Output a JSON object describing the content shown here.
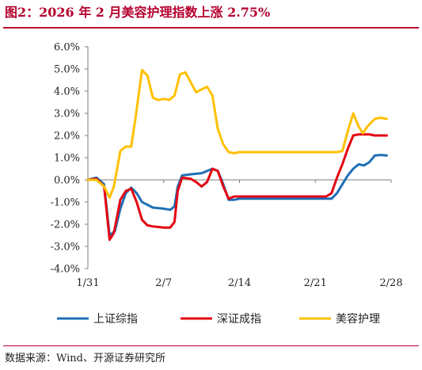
{
  "title": "图2：2026 年 2 月美容护理指数上涨 2.75%",
  "source": "数据来源：Wind、开源证券研究所",
  "colors": {
    "accent": "#b5002e",
    "axis": "#7f7f7f"
  },
  "chart_data": {
    "type": "line",
    "title": "",
    "xlabel": "",
    "ylabel": "",
    "ylim": [
      -4.0,
      6.0
    ],
    "y_ticks": [
      "6.0%",
      "5.0%",
      "4.0%",
      "3.0%",
      "2.0%",
      "1.0%",
      "0.0%",
      "-1.0%",
      "-2.0%",
      "-3.0%",
      "-4.0%"
    ],
    "y_tick_values": [
      6,
      5,
      4,
      3,
      2,
      1,
      0,
      -1,
      -2,
      -3,
      -4
    ],
    "x_ticks": [
      "1/31",
      "2/7",
      "2/14",
      "2/21",
      "2/28"
    ],
    "x_tick_index": [
      0,
      7,
      14,
      21,
      28
    ],
    "x_domain": [
      0,
      28
    ],
    "legend_position": "bottom",
    "grid": false,
    "series": [
      {
        "name": "上证综指",
        "color": "#1f6fb5",
        "points": [
          [
            0,
            0.0
          ],
          [
            0.8,
            0.1
          ],
          [
            1.5,
            -0.2
          ],
          [
            2,
            -2.5
          ],
          [
            2.5,
            -2.3
          ],
          [
            3,
            -1.3
          ],
          [
            3.5,
            -0.6
          ],
          [
            4,
            -0.35
          ],
          [
            4.5,
            -0.6
          ],
          [
            5,
            -1.0
          ],
          [
            6,
            -1.25
          ],
          [
            7,
            -1.3
          ],
          [
            7.6,
            -1.35
          ],
          [
            8,
            -1.2
          ],
          [
            8.3,
            -0.3
          ],
          [
            8.7,
            0.2
          ],
          [
            9.5,
            0.25
          ],
          [
            10.5,
            0.3
          ],
          [
            11.5,
            0.5
          ],
          [
            12,
            0.4
          ],
          [
            12.5,
            -0.2
          ],
          [
            13,
            -0.9
          ],
          [
            13.5,
            -0.9
          ],
          [
            14,
            -0.85
          ],
          [
            21,
            -0.85
          ],
          [
            22,
            -0.85
          ],
          [
            22.5,
            -0.85
          ],
          [
            23,
            -0.6
          ],
          [
            23.5,
            -0.2
          ],
          [
            24,
            0.2
          ],
          [
            24.5,
            0.5
          ],
          [
            25,
            0.7
          ],
          [
            25.5,
            0.65
          ],
          [
            26,
            0.8
          ],
          [
            26.5,
            1.1
          ],
          [
            27,
            1.12
          ],
          [
            27.6,
            1.1
          ]
        ]
      },
      {
        "name": "深证成指",
        "color": "#e30613",
        "points": [
          [
            0,
            0.0
          ],
          [
            0.8,
            0.05
          ],
          [
            1.5,
            -0.3
          ],
          [
            2,
            -2.7
          ],
          [
            2.4,
            -2.4
          ],
          [
            3,
            -0.9
          ],
          [
            3.5,
            -0.5
          ],
          [
            4,
            -0.4
          ],
          [
            4.5,
            -1.0
          ],
          [
            5,
            -1.8
          ],
          [
            5.5,
            -2.05
          ],
          [
            6,
            -2.1
          ],
          [
            7,
            -2.15
          ],
          [
            7.6,
            -2.15
          ],
          [
            8,
            -1.9
          ],
          [
            8.3,
            -0.5
          ],
          [
            8.7,
            0.1
          ],
          [
            9.5,
            0.05
          ],
          [
            10,
            -0.1
          ],
          [
            10.5,
            -0.3
          ],
          [
            11,
            -0.1
          ],
          [
            11.5,
            0.5
          ],
          [
            12,
            0.4
          ],
          [
            12.5,
            -0.3
          ],
          [
            13,
            -0.85
          ],
          [
            13.5,
            -0.75
          ],
          [
            14,
            -0.75
          ],
          [
            21,
            -0.75
          ],
          [
            22,
            -0.75
          ],
          [
            22.5,
            -0.6
          ],
          [
            23,
            0.1
          ],
          [
            23.5,
            0.7
          ],
          [
            24,
            1.4
          ],
          [
            24.5,
            2.0
          ],
          [
            25,
            2.05
          ],
          [
            26,
            2.05
          ],
          [
            26.5,
            2.0
          ],
          [
            27.6,
            2.0
          ]
        ]
      },
      {
        "name": "美容护理",
        "color": "#ffc000",
        "points": [
          [
            0,
            0.0
          ],
          [
            0.8,
            0.0
          ],
          [
            1.5,
            -0.3
          ],
          [
            2,
            -0.8
          ],
          [
            2.4,
            -0.3
          ],
          [
            3,
            1.3
          ],
          [
            3.5,
            1.5
          ],
          [
            4,
            1.5
          ],
          [
            4.4,
            2.8
          ],
          [
            5,
            4.95
          ],
          [
            5.5,
            4.7
          ],
          [
            6,
            3.7
          ],
          [
            6.5,
            3.6
          ],
          [
            7,
            3.65
          ],
          [
            7.5,
            3.6
          ],
          [
            8,
            3.8
          ],
          [
            8.5,
            4.75
          ],
          [
            9,
            4.85
          ],
          [
            9.6,
            4.3
          ],
          [
            10,
            3.95
          ],
          [
            10.6,
            4.1
          ],
          [
            11,
            4.2
          ],
          [
            11.5,
            3.8
          ],
          [
            12,
            2.3
          ],
          [
            12.5,
            1.6
          ],
          [
            13,
            1.25
          ],
          [
            13.5,
            1.2
          ],
          [
            14,
            1.25
          ],
          [
            21,
            1.25
          ],
          [
            22,
            1.25
          ],
          [
            22.5,
            1.25
          ],
          [
            23,
            1.25
          ],
          [
            23.5,
            1.3
          ],
          [
            24,
            2.2
          ],
          [
            24.5,
            3.0
          ],
          [
            25,
            2.4
          ],
          [
            25.4,
            2.1
          ],
          [
            25.8,
            2.4
          ],
          [
            26,
            2.5
          ],
          [
            26.5,
            2.75
          ],
          [
            27,
            2.8
          ],
          [
            27.6,
            2.75
          ]
        ]
      }
    ]
  }
}
